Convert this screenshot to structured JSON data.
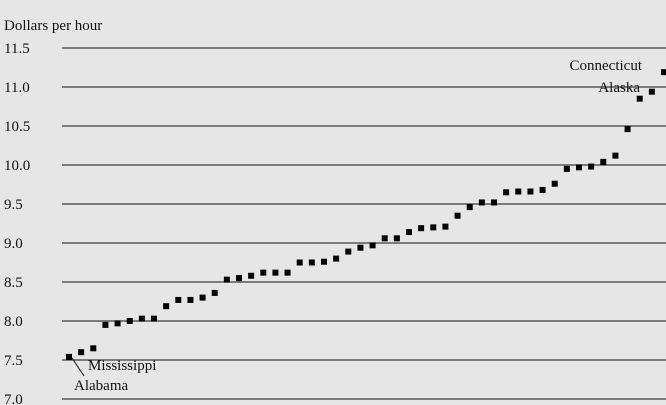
{
  "chart_data": {
    "type": "scatter",
    "title": "",
    "xlabel": "",
    "ylabel": "Dollars per hour",
    "ylim": [
      7.0,
      11.5
    ],
    "yticks": [
      "11.5",
      "11.0",
      "10.5",
      "10.0",
      "9.5",
      "9.0",
      "8.5",
      "8.0",
      "7.5",
      "7.0"
    ],
    "grid": "horizontal",
    "series": [
      {
        "values": [
          7.54,
          7.6,
          7.65,
          7.95,
          7.97,
          8.0,
          8.03,
          8.03,
          8.19,
          8.27,
          8.27,
          8.3,
          8.36,
          8.53,
          8.55,
          8.58,
          8.62,
          8.62,
          8.62,
          8.75,
          8.75,
          8.76,
          8.8,
          8.89,
          8.94,
          8.97,
          9.06,
          9.06,
          9.14,
          9.19,
          9.2,
          9.21,
          9.35,
          9.46,
          9.52,
          9.52,
          9.65,
          9.66,
          9.66,
          9.68,
          9.76,
          9.95,
          9.97,
          9.98,
          10.04,
          10.12,
          10.46,
          10.85,
          10.94,
          11.19
        ]
      }
    ],
    "annotations": [
      {
        "label": "Connecticut"
      },
      {
        "label": "Alaska"
      },
      {
        "label": "Mississippi"
      },
      {
        "label": "Alabama"
      }
    ]
  }
}
